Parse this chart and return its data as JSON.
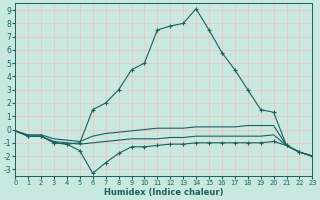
{
  "xlabel": "Humidex (Indice chaleur)",
  "bg_color": "#c8e8e0",
  "grid_color": "#f0c0c0",
  "line_color": "#1a6060",
  "xlim": [
    0,
    23
  ],
  "ylim": [
    -3.5,
    9.5
  ],
  "xticks": [
    0,
    1,
    2,
    3,
    4,
    5,
    6,
    7,
    8,
    9,
    10,
    11,
    12,
    13,
    14,
    15,
    16,
    17,
    18,
    19,
    20,
    21,
    22,
    23
  ],
  "yticks": [
    -3,
    -2,
    -1,
    0,
    1,
    2,
    3,
    4,
    5,
    6,
    7,
    8,
    9
  ],
  "line_peak_x": [
    0,
    1,
    2,
    3,
    4,
    5,
    6,
    7,
    8,
    9,
    10,
    11,
    12,
    13,
    14,
    15,
    16,
    17,
    18,
    19,
    20,
    21,
    22,
    23
  ],
  "line_peak_y": [
    -0.1,
    -0.5,
    -0.5,
    -1.0,
    -1.1,
    -1.0,
    1.5,
    2.0,
    3.0,
    4.5,
    5.0,
    7.5,
    7.8,
    8.0,
    9.1,
    7.5,
    5.8,
    4.5,
    3.0,
    1.5,
    1.3,
    -1.2,
    -1.7,
    -2.0
  ],
  "line_valley_x": [
    0,
    1,
    2,
    3,
    4,
    5,
    6,
    7,
    8,
    9,
    10,
    11,
    12,
    13,
    14,
    15,
    16,
    17,
    18,
    19,
    20,
    21,
    22,
    23
  ],
  "line_valley_y": [
    -0.1,
    -0.5,
    -0.5,
    -1.0,
    -1.1,
    -1.6,
    -3.3,
    -2.5,
    -1.8,
    -1.3,
    -1.3,
    -1.2,
    -1.1,
    -1.1,
    -1.0,
    -1.0,
    -1.0,
    -1.0,
    -1.0,
    -1.0,
    -0.9,
    -1.2,
    -1.7,
    -2.0
  ],
  "line_flat1_x": [
    0,
    1,
    2,
    3,
    4,
    5,
    6,
    7,
    8,
    9,
    10,
    11,
    12,
    13,
    14,
    15,
    16,
    17,
    18,
    19,
    20,
    21,
    22,
    23
  ],
  "line_flat1_y": [
    -0.1,
    -0.4,
    -0.4,
    -0.7,
    -0.8,
    -0.9,
    -0.5,
    -0.3,
    -0.2,
    -0.1,
    0.0,
    0.1,
    0.1,
    0.1,
    0.2,
    0.2,
    0.2,
    0.2,
    0.3,
    0.3,
    0.3,
    -1.2,
    -1.7,
    -2.0
  ],
  "line_flat2_x": [
    0,
    1,
    2,
    3,
    4,
    5,
    6,
    7,
    8,
    9,
    10,
    11,
    12,
    13,
    14,
    15,
    16,
    17,
    18,
    19,
    20,
    21,
    22,
    23
  ],
  "line_flat2_y": [
    -0.1,
    -0.5,
    -0.5,
    -0.9,
    -1.0,
    -1.1,
    -1.0,
    -0.9,
    -0.8,
    -0.7,
    -0.7,
    -0.7,
    -0.6,
    -0.6,
    -0.5,
    -0.5,
    -0.5,
    -0.5,
    -0.5,
    -0.5,
    -0.4,
    -1.2,
    -1.7,
    -2.0
  ]
}
